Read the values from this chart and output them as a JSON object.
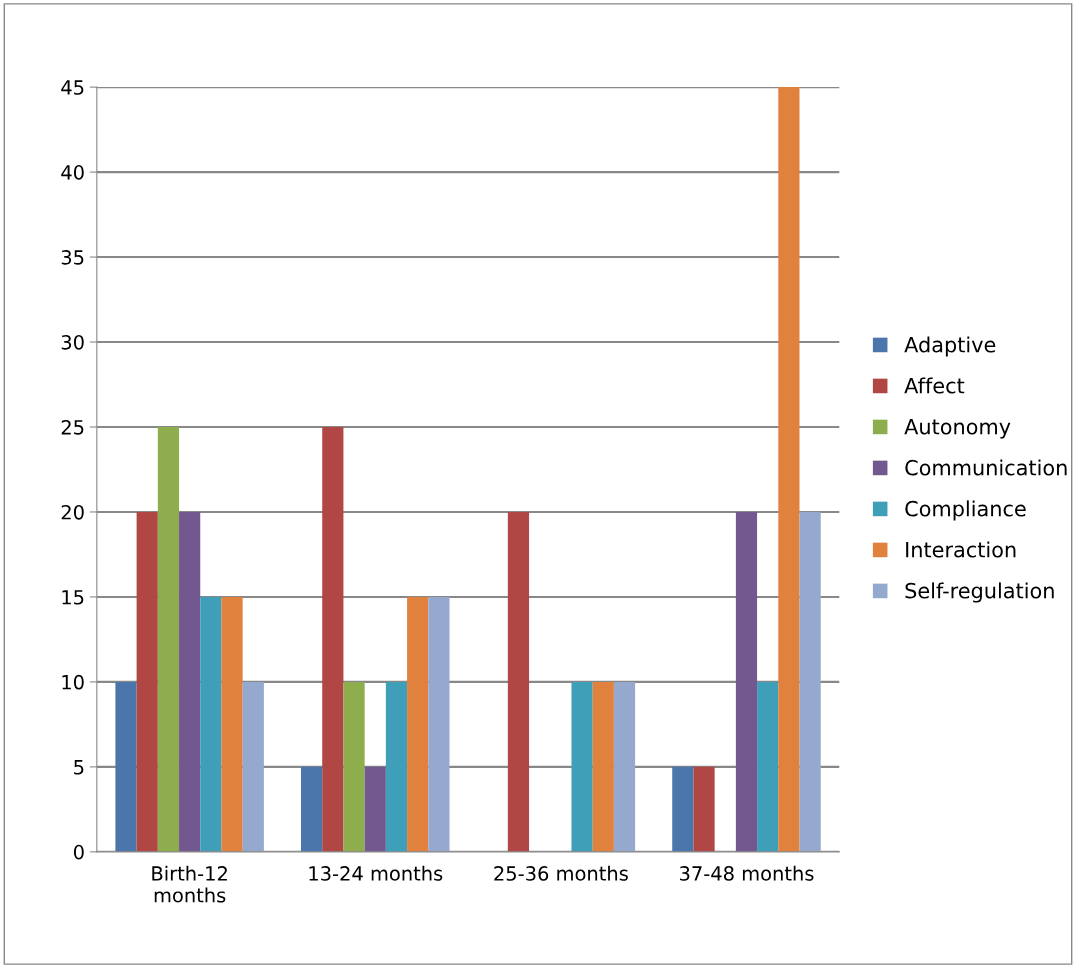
{
  "chart_data": {
    "type": "bar",
    "categories": [
      "Birth-12\nmonths",
      "13-24 months",
      "25-36 months",
      "37-48 months"
    ],
    "series": [
      {
        "name": "Adaptive",
        "color": "#4a76ab",
        "values": [
          10,
          5,
          0,
          5
        ]
      },
      {
        "name": "Affect",
        "color": "#b14744",
        "values": [
          20,
          25,
          20,
          5
        ]
      },
      {
        "name": "Autonomy",
        "color": "#8ead4d",
        "values": [
          25,
          10,
          0,
          0
        ]
      },
      {
        "name": "Communication",
        "color": "#735890",
        "values": [
          20,
          5,
          0,
          20
        ]
      },
      {
        "name": "Compliance",
        "color": "#409fb8",
        "values": [
          15,
          10,
          10,
          10
        ]
      },
      {
        "name": "Interaction",
        "color": "#e0823d",
        "values": [
          15,
          15,
          10,
          45
        ]
      },
      {
        "name": "Self-regulation",
        "color": "#95a9cf",
        "values": [
          10,
          15,
          10,
          20
        ]
      }
    ],
    "ylim": [
      0,
      45
    ],
    "yticks": [
      0,
      5,
      10,
      15,
      20,
      25,
      30,
      35,
      40,
      45
    ],
    "grid": "y",
    "legend": "right"
  }
}
